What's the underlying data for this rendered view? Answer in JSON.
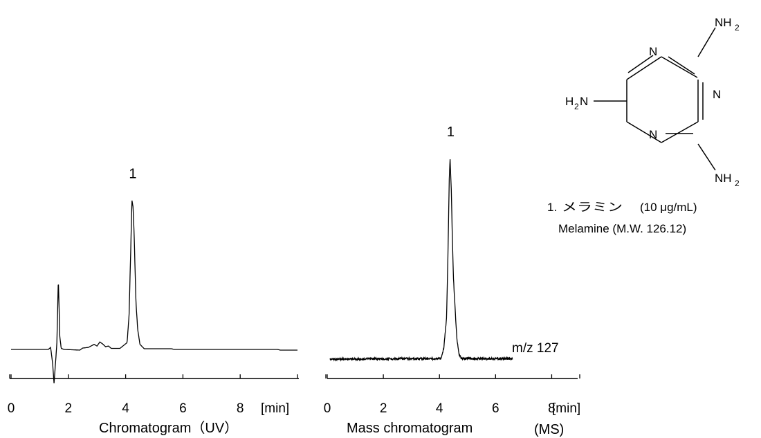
{
  "chart_data": [
    {
      "type": "line",
      "title": "",
      "xlabel": "Chromatogram（UV）",
      "xunit": "[min]",
      "xlim": [
        0,
        10
      ],
      "xticks": [
        0,
        2,
        4,
        6,
        8
      ],
      "ylabel": "",
      "peak_labels": [
        {
          "label": "1",
          "x": 4.25
        }
      ],
      "series": [
        {
          "x": [
            0,
            1.3,
            1.38,
            1.45,
            1.5,
            1.56,
            1.6,
            1.65,
            1.7,
            1.75,
            1.85,
            2.4,
            2.5,
            2.7,
            2.9,
            3.0,
            3.1,
            3.2,
            3.3,
            3.4,
            3.5,
            3.8,
            4.05,
            4.12,
            4.18,
            4.22,
            4.26,
            4.3,
            4.36,
            4.42,
            4.5,
            4.65,
            5.6,
            5.7,
            9.3,
            9.4,
            10.0
          ],
          "y": [
            0,
            0.0,
            0.6,
            -4.0,
            -10.0,
            -3.0,
            2.0,
            21.0,
            4.0,
            0.3,
            0.0,
            -0.2,
            0.4,
            0.6,
            1.5,
            1.0,
            2.2,
            1.6,
            0.8,
            1.0,
            0.3,
            0.3,
            2.0,
            10.0,
            30.0,
            44.0,
            42.0,
            33.0,
            14.0,
            6.0,
            1.5,
            0.2,
            0.2,
            0.0,
            0.0,
            -0.2,
            -0.2
          ]
        }
      ]
    },
    {
      "type": "line",
      "title": "",
      "xlabel": "Mass chromatogram",
      "xlabel_suffix": "(MS)",
      "xunit": "[min]",
      "xlim": [
        0,
        9
      ],
      "xticks": [
        0,
        2,
        4,
        6,
        8
      ],
      "ylabel": "",
      "trace_label": "m/z 127",
      "peak_labels": [
        {
          "label": "1",
          "x": 4.4
        }
      ],
      "series": [
        {
          "x": [
            0.1,
            4.05,
            4.15,
            4.25,
            4.3,
            4.35,
            4.38,
            4.42,
            4.46,
            4.5,
            4.56,
            4.62,
            4.7,
            4.8,
            6.6
          ],
          "y": [
            0.0,
            0.3,
            5.0,
            20.0,
            50.0,
            90.0,
            100.0,
            85.0,
            60.0,
            40.0,
            25.0,
            10.0,
            2.0,
            0.3,
            0.2
          ]
        }
      ]
    }
  ],
  "structure": {
    "atoms": [
      "N",
      "N",
      "N",
      "H",
      "N",
      "NH",
      "NH"
    ],
    "subscripts": [
      "2",
      "2",
      "2"
    ]
  },
  "compound": {
    "line1_number": "1.",
    "line1_name": "メラミン",
    "line1_conc": "(10 μg/mL)",
    "line2": "Melamine (M.W. 126.12)"
  }
}
